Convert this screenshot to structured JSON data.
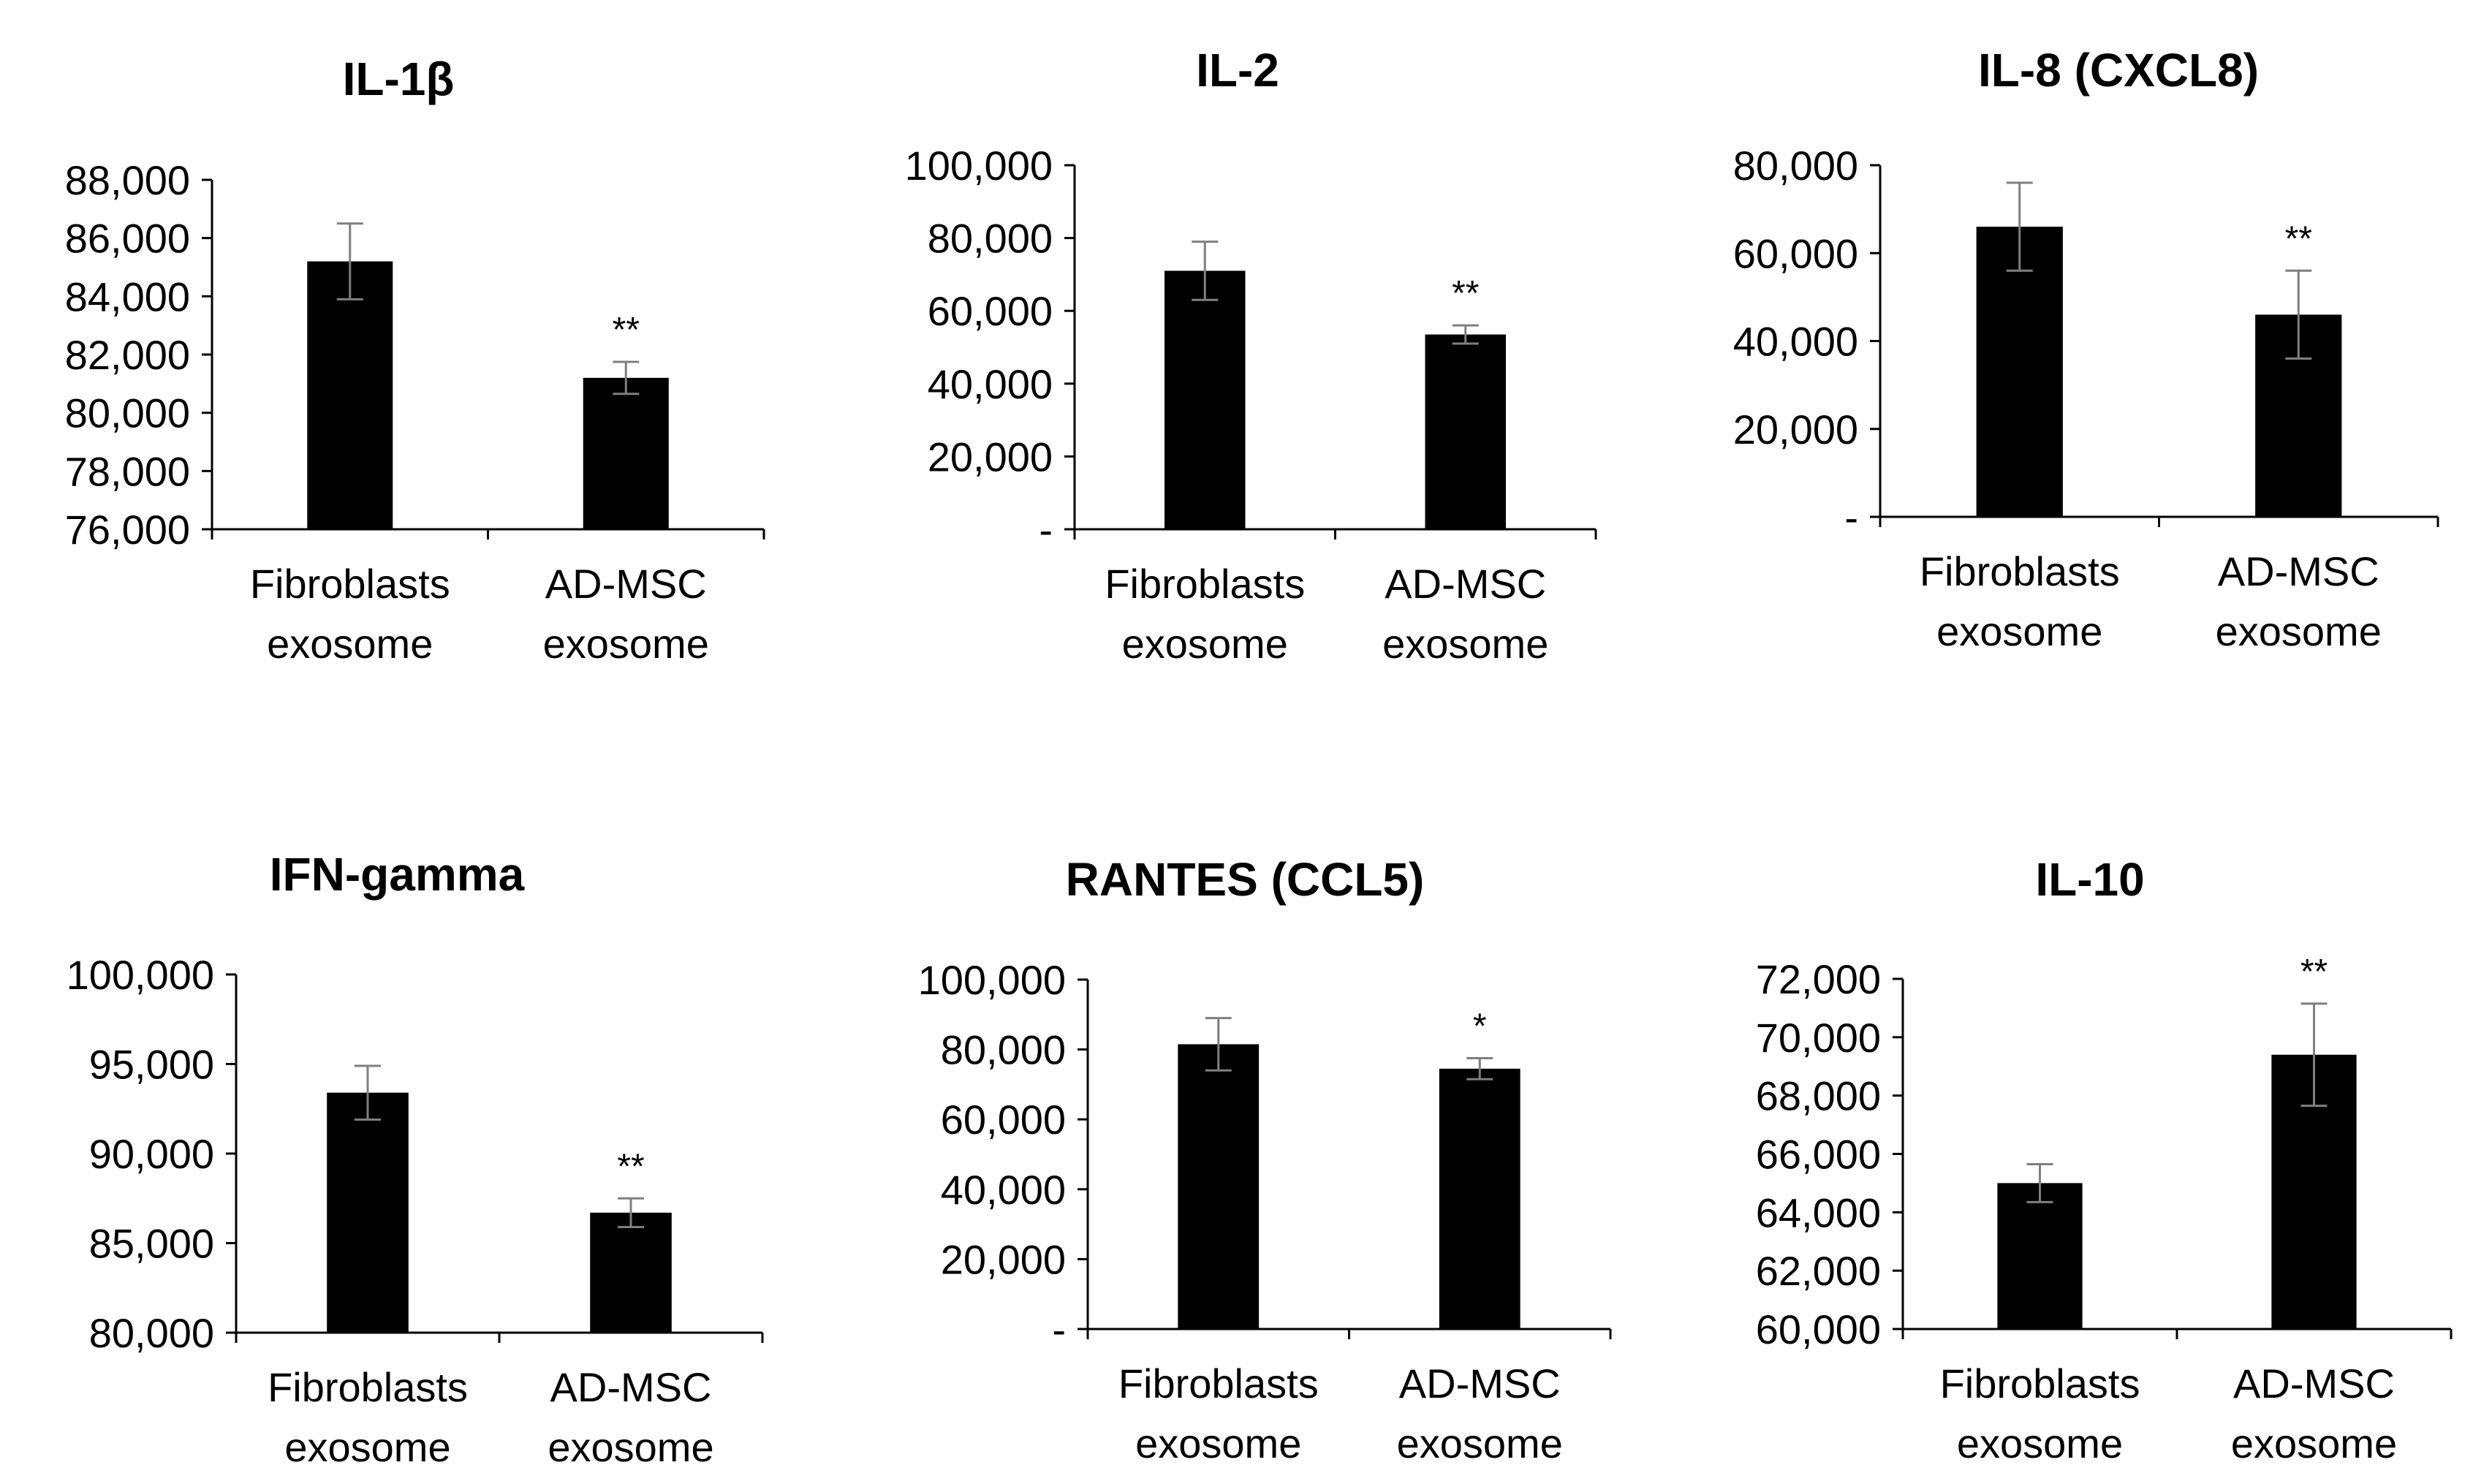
{
  "chart_data": [
    {
      "type": "bar",
      "title": "IL-1β",
      "categories": [
        [
          "Fibroblasts",
          "exosome"
        ],
        [
          "AD-MSC",
          "exosome"
        ]
      ],
      "values": [
        85200,
        81200
      ],
      "errors": [
        1300,
        550
      ],
      "significance": [
        "",
        "**"
      ],
      "ylim": [
        76000,
        88000
      ],
      "yticks": [
        76000,
        78000,
        80000,
        82000,
        84000,
        86000,
        88000
      ],
      "ytick_labels": [
        "76,000",
        "78,000",
        "80,000",
        "82,000",
        "84,000",
        "86,000",
        "88,000"
      ],
      "xlabel": "",
      "ylabel": "",
      "colors": {
        "bar": "#000000",
        "error": "#7f7f7f",
        "axis": "#000000"
      }
    },
    {
      "type": "bar",
      "title": "IL-2",
      "categories": [
        [
          "Fibroblasts",
          "exosome"
        ],
        [
          "AD-MSC",
          "exosome"
        ]
      ],
      "values": [
        71000,
        53500
      ],
      "errors": [
        8000,
        2500
      ],
      "significance": [
        "",
        "**"
      ],
      "ylim": [
        0,
        100000
      ],
      "yticks": [
        0,
        20000,
        40000,
        60000,
        80000,
        100000
      ],
      "ytick_labels": [
        "-",
        "20,000",
        "40,000",
        "60,000",
        "80,000",
        "100,000"
      ],
      "xlabel": "",
      "ylabel": "",
      "colors": {
        "bar": "#000000",
        "error": "#7f7f7f",
        "axis": "#000000"
      }
    },
    {
      "type": "bar",
      "title": "IL-8 (CXCL8)",
      "categories": [
        [
          "Fibroblasts",
          "exosome"
        ],
        [
          "AD-MSC",
          "exosome"
        ]
      ],
      "values": [
        66000,
        46000
      ],
      "errors": [
        10000,
        10000
      ],
      "significance": [
        "",
        "**"
      ],
      "ylim": [
        0,
        80000
      ],
      "yticks": [
        0,
        20000,
        40000,
        60000,
        80000
      ],
      "ytick_labels": [
        "-",
        "20,000",
        "40,000",
        "60,000",
        "80,000"
      ],
      "xlabel": "",
      "ylabel": "",
      "colors": {
        "bar": "#000000",
        "error": "#7f7f7f",
        "axis": "#000000"
      }
    },
    {
      "type": "bar",
      "title": "IFN-gamma",
      "categories": [
        [
          "Fibroblasts",
          "exosome"
        ],
        [
          "AD-MSC",
          "exosome"
        ]
      ],
      "values": [
        93400,
        86700
      ],
      "errors": [
        1500,
        800
      ],
      "significance": [
        "",
        "**"
      ],
      "ylim": [
        80000,
        100000
      ],
      "yticks": [
        80000,
        85000,
        90000,
        95000,
        100000
      ],
      "ytick_labels": [
        "80,000",
        "85,000",
        "90,000",
        "95,000",
        "100,000"
      ],
      "xlabel": "",
      "ylabel": "",
      "colors": {
        "bar": "#000000",
        "error": "#7f7f7f",
        "axis": "#000000"
      }
    },
    {
      "type": "bar",
      "title": "RANTES (CCL5)",
      "categories": [
        [
          "Fibroblasts",
          "exosome"
        ],
        [
          "AD-MSC",
          "exosome"
        ]
      ],
      "values": [
        81500,
        74500
      ],
      "errors": [
        7500,
        3000
      ],
      "significance": [
        "",
        "*"
      ],
      "ylim": [
        0,
        100000
      ],
      "yticks": [
        0,
        20000,
        40000,
        60000,
        80000,
        100000
      ],
      "ytick_labels": [
        "-",
        "20,000",
        "40,000",
        "60,000",
        "80,000",
        "100,000"
      ],
      "xlabel": "",
      "ylabel": "",
      "colors": {
        "bar": "#000000",
        "error": "#7f7f7f",
        "axis": "#000000"
      }
    },
    {
      "type": "bar",
      "title": "IL-10",
      "categories": [
        [
          "Fibroblasts",
          "exosome"
        ],
        [
          "AD-MSC",
          "exosome"
        ]
      ],
      "values": [
        65000,
        69400
      ],
      "errors": [
        650,
        1750
      ],
      "significance": [
        "",
        "**"
      ],
      "ylim": [
        60000,
        72000
      ],
      "yticks": [
        60000,
        62000,
        64000,
        66000,
        68000,
        70000,
        72000
      ],
      "ytick_labels": [
        "60,000",
        "62,000",
        "64,000",
        "66,000",
        "68,000",
        "70,000",
        "72,000"
      ],
      "xlabel": "",
      "ylabel": "",
      "colors": {
        "bar": "#000000",
        "error": "#7f7f7f",
        "axis": "#000000"
      }
    }
  ]
}
